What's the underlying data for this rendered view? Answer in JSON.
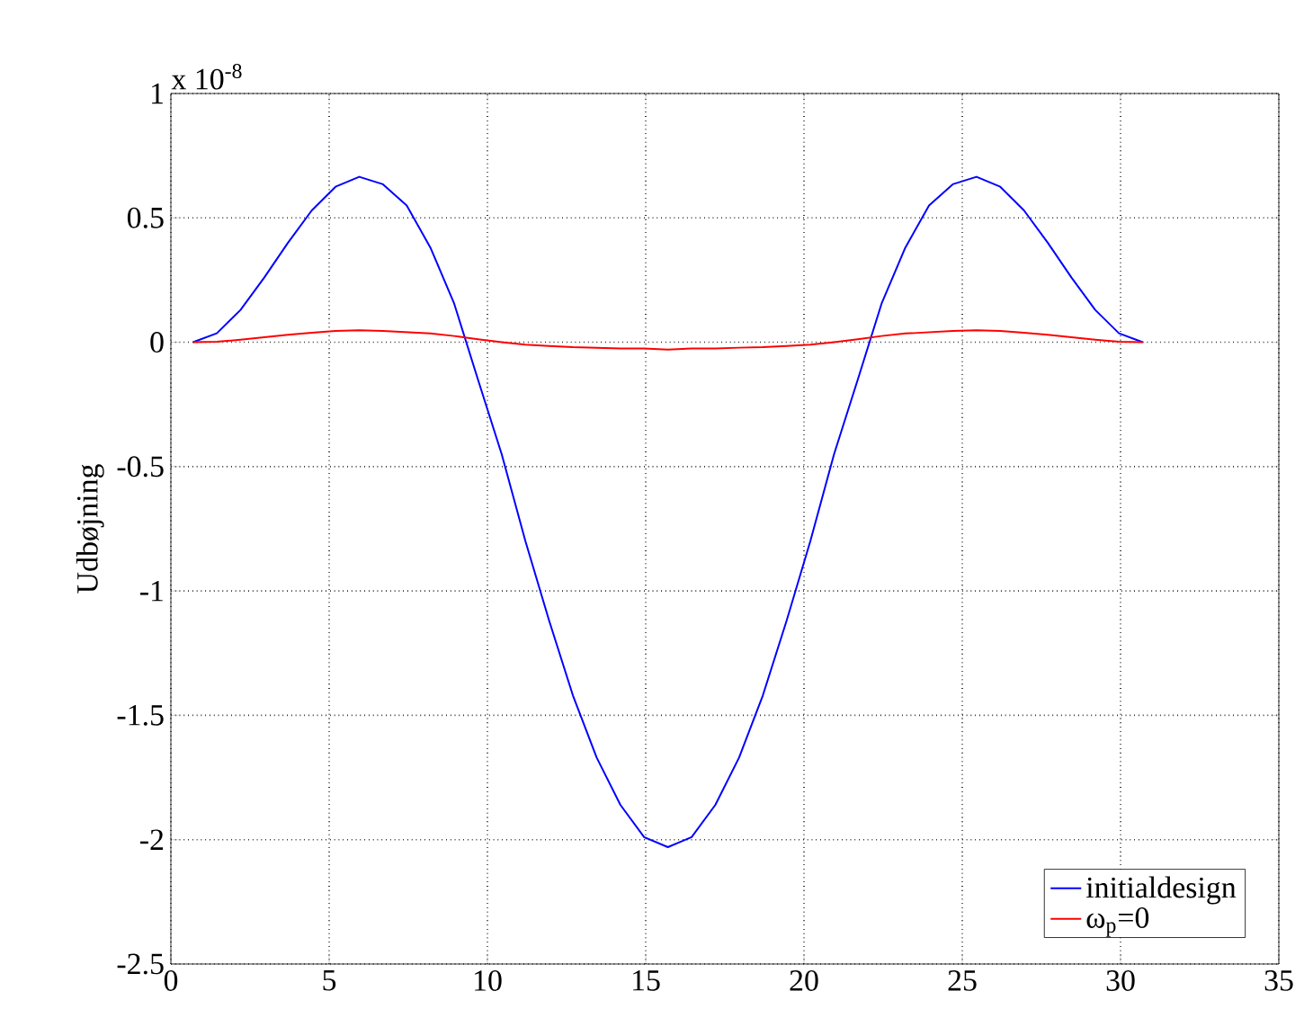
{
  "chart_data": {
    "type": "line",
    "ylabel": "Udbøjning",
    "annotations": [
      "x 10$^{-8}$"
    ],
    "x": [
      0.7,
      1.45,
      2.2,
      2.95,
      3.7,
      4.45,
      5.2,
      5.95,
      6.7,
      7.45,
      8.2,
      8.95,
      9.7,
      10.45,
      11.2,
      11.95,
      12.7,
      13.45,
      14.2,
      14.95,
      15.7,
      16.45,
      17.2,
      17.95,
      18.7,
      19.45,
      20.2,
      20.95,
      21.7,
      22.45,
      23.2,
      23.95,
      24.7,
      25.45,
      26.2,
      26.95,
      27.7,
      28.45,
      29.2,
      29.95,
      30.7
    ],
    "series": [
      {
        "name": "initialdesign",
        "color": "#0000ff",
        "values": [
          0,
          0.036,
          0.13,
          0.26,
          0.4,
          0.53,
          0.625,
          0.665,
          0.635,
          0.55,
          0.38,
          0.155,
          -0.15,
          -0.45,
          -0.8,
          -1.12,
          -1.42,
          -1.67,
          -1.86,
          -1.99,
          -2.03,
          -1.99,
          -1.86,
          -1.67,
          -1.42,
          -1.12,
          -0.8,
          -0.45,
          -0.15,
          0.155,
          0.38,
          0.55,
          0.635,
          0.665,
          0.625,
          0.53,
          0.4,
          0.26,
          0.13,
          0.036,
          0
        ]
      },
      {
        "name": "ω$_{p}$=0",
        "color": "#ff0000",
        "values": [
          0,
          0.002,
          0.01,
          0.02,
          0.03,
          0.038,
          0.045,
          0.048,
          0.045,
          0.04,
          0.035,
          0.025,
          0.012,
          0,
          -0.01,
          -0.015,
          -0.02,
          -0.022,
          -0.025,
          -0.025,
          -0.03,
          -0.025,
          -0.025,
          -0.022,
          -0.02,
          -0.015,
          -0.01,
          0,
          0.012,
          0.025,
          0.035,
          0.04,
          0.045,
          0.048,
          0.045,
          0.038,
          0.03,
          0.02,
          0.01,
          0.002,
          0
        ]
      }
    ],
    "xlim": [
      0,
      35
    ],
    "ylim": [
      -2.5,
      1
    ],
    "xticks": [
      0,
      5,
      10,
      15,
      20,
      25,
      30,
      35
    ],
    "yticks": [
      -2.5,
      -2,
      -1.5,
      -1,
      -0.5,
      0,
      0.5,
      1
    ],
    "grid": true,
    "legend": "bottom right",
    "line_style": "solid",
    "marker": "none"
  }
}
